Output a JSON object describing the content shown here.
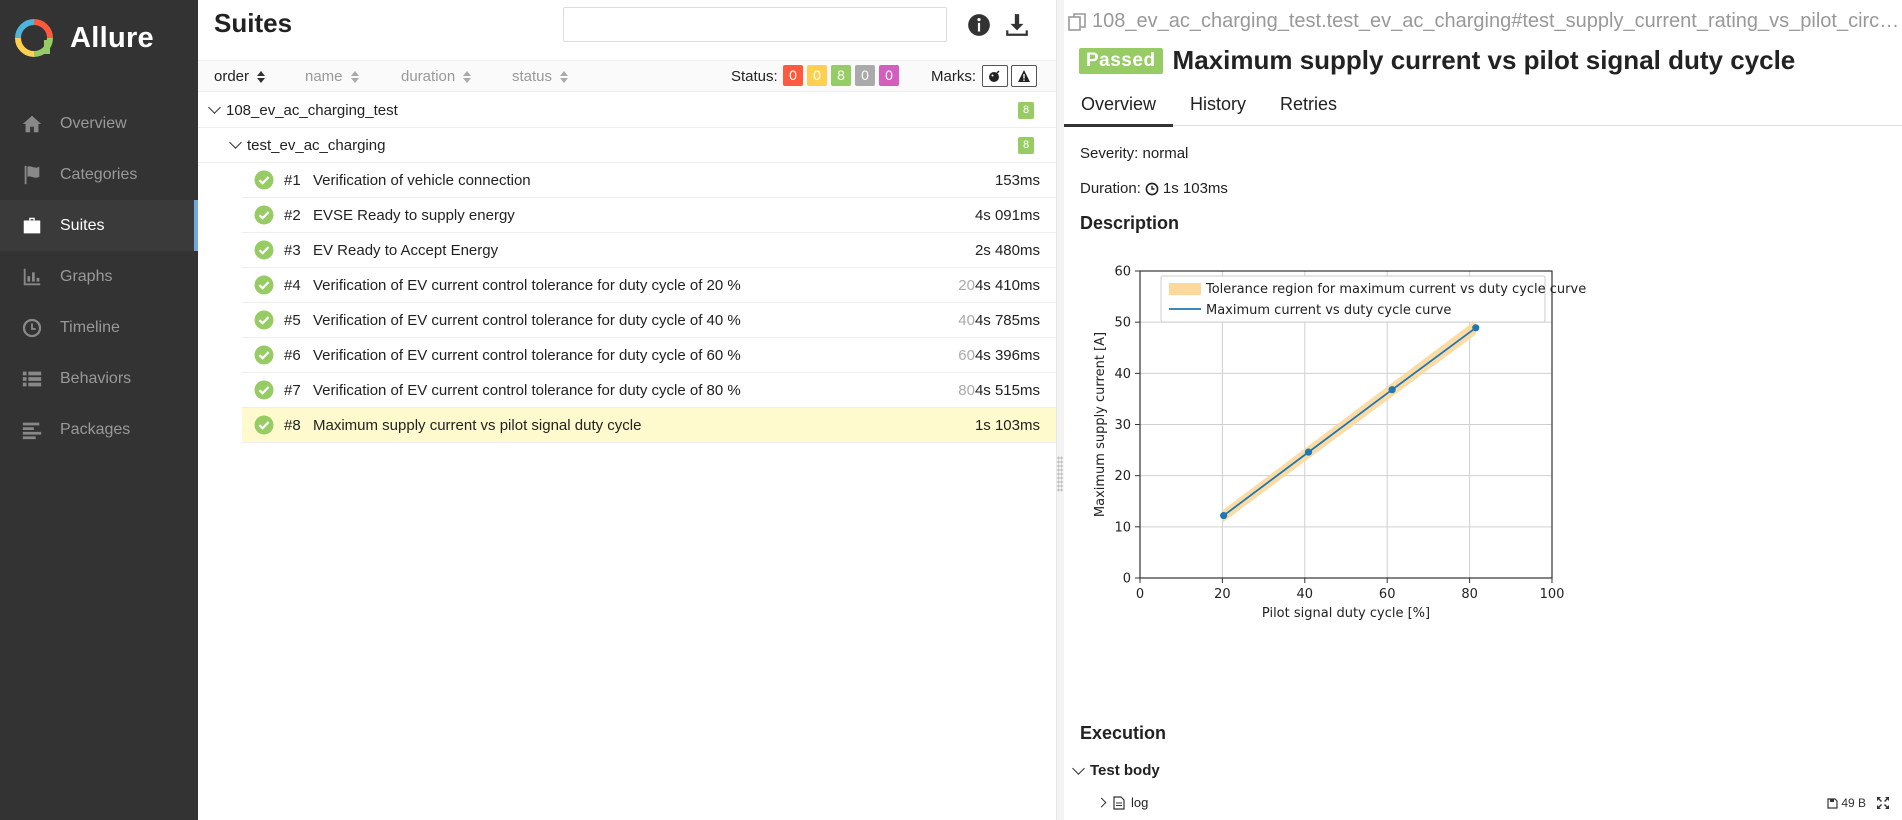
{
  "app": {
    "name": "Allure"
  },
  "sidebar": {
    "items": [
      {
        "label": "Overview",
        "icon": "home-icon",
        "active": false
      },
      {
        "label": "Categories",
        "icon": "flag-icon",
        "active": false
      },
      {
        "label": "Suites",
        "icon": "briefcase-icon",
        "active": true
      },
      {
        "label": "Graphs",
        "icon": "bar-chart-icon",
        "active": false
      },
      {
        "label": "Timeline",
        "icon": "clock-icon",
        "active": false
      },
      {
        "label": "Behaviors",
        "icon": "list-icon",
        "active": false
      },
      {
        "label": "Packages",
        "icon": "align-left-icon",
        "active": false
      }
    ]
  },
  "suites": {
    "title": "Suites",
    "search": {
      "value": "",
      "placeholder": ""
    },
    "sort": {
      "order": "order",
      "name": "name",
      "duration": "duration",
      "status": "status"
    },
    "status_label": "Status:",
    "status_counts": [
      {
        "value": "0",
        "color": "#fd5a3e"
      },
      {
        "value": "0",
        "color": "#ffd050"
      },
      {
        "value": "8",
        "color": "#97cc64"
      },
      {
        "value": "0",
        "color": "#aaaaaa"
      },
      {
        "value": "0",
        "color": "#d35ebe"
      }
    ],
    "marks_label": "Marks:",
    "group": {
      "name": "108_ev_ac_charging_test",
      "count": "8"
    },
    "subgroup": {
      "name": "test_ev_ac_charging",
      "count": "8"
    },
    "cases": [
      {
        "num": "#1",
        "name": "Verification of vehicle connection",
        "param": "",
        "duration": "153ms",
        "selected": false
      },
      {
        "num": "#2",
        "name": "EVSE Ready to supply energy",
        "param": "",
        "duration": "4s 091ms",
        "selected": false
      },
      {
        "num": "#3",
        "name": "EV Ready to Accept Energy",
        "param": "",
        "duration": "2s 480ms",
        "selected": false
      },
      {
        "num": "#4",
        "name": "Verification of EV current control tolerance for duty cycle of 20 %",
        "param": "20",
        "duration": "4s 410ms",
        "selected": false
      },
      {
        "num": "#5",
        "name": "Verification of EV current control tolerance for duty cycle of 40 %",
        "param": "40",
        "duration": "4s 785ms",
        "selected": false
      },
      {
        "num": "#6",
        "name": "Verification of EV current control tolerance for duty cycle of 60 %",
        "param": "60",
        "duration": "4s 396ms",
        "selected": false
      },
      {
        "num": "#7",
        "name": "Verification of EV current control tolerance for duty cycle of 80 %",
        "param": "80",
        "duration": "4s 515ms",
        "selected": false
      },
      {
        "num": "#8",
        "name": "Maximum supply current vs pilot signal duty cycle",
        "param": "",
        "duration": "1s 103ms",
        "selected": true
      }
    ]
  },
  "detail": {
    "breadcrumb": "108_ev_ac_charging_test.test_ev_ac_charging#test_supply_current_rating_vs_pilot_circ…",
    "status": "Passed",
    "title": "Maximum supply current vs pilot signal duty cycle",
    "tabs": [
      "Overview",
      "History",
      "Retries"
    ],
    "severity": "Severity: normal",
    "duration_label": "Duration:",
    "duration_value": "1s 103ms",
    "description_heading": "Description",
    "execution_heading": "Execution",
    "test_body": "Test body",
    "attachment": {
      "name": "log",
      "size": "49 B"
    }
  },
  "chart_data": {
    "type": "line",
    "xlabel": "Pilot signal duty cycle [%]",
    "ylabel": "Maximum supply current [A]",
    "xlim": [
      0,
      100
    ],
    "ylim": [
      0,
      60
    ],
    "xticks": [
      0,
      20,
      40,
      60,
      80,
      100
    ],
    "yticks": [
      0,
      10,
      20,
      30,
      40,
      50,
      60
    ],
    "grid": true,
    "legend_position": "top-right",
    "series": [
      {
        "name": "Tolerance region for maximum current vs duty cycle curve",
        "kind": "band",
        "color": "#fcd89a",
        "x": [
          20,
          81.5
        ],
        "lower": [
          10.8,
          47.6
        ],
        "upper": [
          13.2,
          50.4
        ]
      },
      {
        "name": "Maximum current vs duty cycle curve",
        "kind": "line",
        "color": "#1f77b4",
        "x": [
          20.3,
          40.9,
          61.2,
          81.5
        ],
        "y": [
          12.2,
          24.6,
          36.8,
          48.9
        ]
      }
    ]
  }
}
